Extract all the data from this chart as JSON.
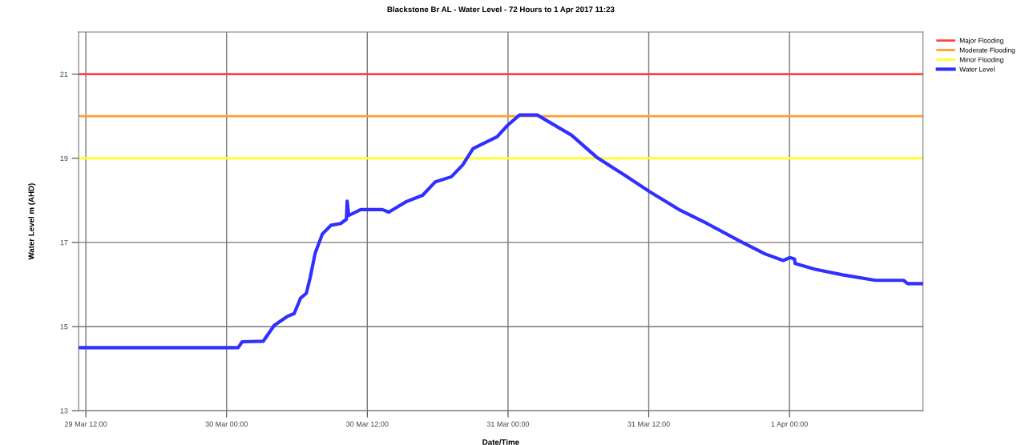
{
  "chart_data": {
    "type": "line",
    "title": "Blackstone Br AL - Water Level - 72 Hours to 1 Apr 2017 11:23",
    "xlabel": "Date/Time",
    "ylabel": "Water Level m (AHD)",
    "xlim": [
      "2017-03-29T11:23",
      "2017-04-01T11:23"
    ],
    "xticks": [
      {
        "value": "2017-03-29T12:00",
        "label": "29 Mar 12:00"
      },
      {
        "value": "2017-03-30T00:00",
        "label": "30 Mar 00:00"
      },
      {
        "value": "2017-03-30T12:00",
        "label": "30 Mar 12:00"
      },
      {
        "value": "2017-03-31T00:00",
        "label": "31 Mar 00:00"
      },
      {
        "value": "2017-03-31T12:00",
        "label": "31 Mar 12:00"
      },
      {
        "value": "2017-04-01T00:00",
        "label": "1 Apr 00:00"
      }
    ],
    "ylim": [
      13,
      22
    ],
    "yticks": [
      13,
      15,
      17,
      19,
      21
    ],
    "grid": true,
    "legend": "top right",
    "ref_lines": [
      {
        "axis": "y",
        "value": 21,
        "label": "Major Flooding",
        "color": "#ff4040"
      },
      {
        "axis": "y",
        "value": 20,
        "label": "Moderate Flooding",
        "color": "#ffa030"
      },
      {
        "axis": "y",
        "value": 19,
        "label": "Minor Flooding",
        "color": "#ffff30"
      }
    ],
    "series": [
      {
        "name": "Water Level",
        "color": "#3030ff",
        "x": [
          "2017-03-29T11:23",
          "2017-03-30T00:55",
          "2017-03-30T00:59",
          "2017-03-30T01:20",
          "2017-03-30T03:07",
          "2017-03-30T04:04",
          "2017-03-30T05:10",
          "2017-03-30T05:46",
          "2017-03-30T06:19",
          "2017-03-30T06:48",
          "2017-03-30T07:08",
          "2017-03-30T07:33",
          "2017-03-30T08:10",
          "2017-03-30T08:55",
          "2017-03-30T09:44",
          "2017-03-30T10:13",
          "2017-03-30T10:17",
          "2017-03-30T10:25",
          "2017-03-30T11:26",
          "2017-03-30T13:17",
          "2017-03-30T13:50",
          "2017-03-30T15:20",
          "2017-03-30T16:43",
          "2017-03-30T17:48",
          "2017-03-30T19:10",
          "2017-03-30T20:08",
          "2017-03-30T21:01",
          "2017-03-30T23:04",
          "2017-03-30T23:57",
          "2017-03-31T00:59",
          "2017-03-31T02:29",
          "2017-03-31T05:25",
          "2017-03-31T07:32",
          "2017-03-31T09:56",
          "2017-03-31T12:03",
          "2017-03-31T14:39",
          "2017-03-31T16:58",
          "2017-03-31T19:47",
          "2017-03-31T21:54",
          "2017-03-31T23:28",
          "2017-04-01T00:01",
          "2017-04-01T00:25",
          "2017-04-01T00:29",
          "2017-04-01T02:12",
          "2017-04-01T04:31",
          "2017-04-01T07:20",
          "2017-04-01T09:43",
          "2017-04-01T10:04",
          "2017-04-01T11:23"
        ],
        "values": [
          14.5,
          14.5,
          14.5,
          14.64,
          14.65,
          15.03,
          15.24,
          15.31,
          15.68,
          15.79,
          16.17,
          16.74,
          17.2,
          17.41,
          17.45,
          17.55,
          17.98,
          17.64,
          17.78,
          17.78,
          17.72,
          17.97,
          18.12,
          18.44,
          18.56,
          18.84,
          19.23,
          19.51,
          19.78,
          20.03,
          20.03,
          19.55,
          19.03,
          18.6,
          18.21,
          17.77,
          17.45,
          17.03,
          16.73,
          16.57,
          16.64,
          16.61,
          16.5,
          16.36,
          16.23,
          16.1,
          16.1,
          16.02,
          16.02
        ]
      }
    ]
  }
}
